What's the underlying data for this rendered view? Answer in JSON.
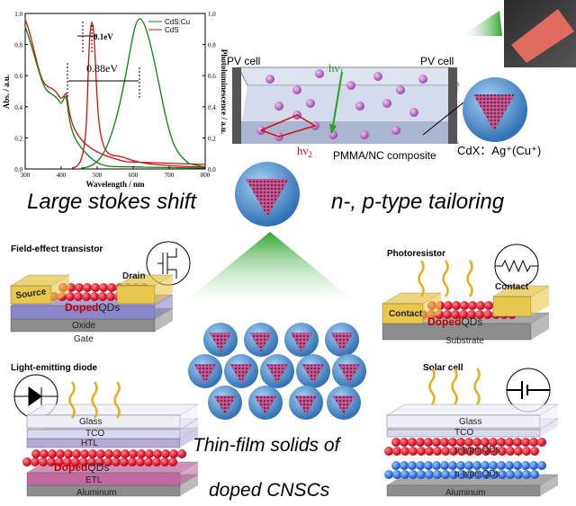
{
  "plot": {
    "y_left_label": "Abs. / a.u.",
    "y_right_label": "Photoluminescence / a.u.",
    "x_label": "Wavelength / nm",
    "y_left_ticks": [
      "0.0",
      "0.2",
      "0.4",
      "0.6",
      "0.8",
      "1.0"
    ],
    "y_right_ticks": [
      "0.0",
      "0.2",
      "0.4",
      "0.6",
      "0.8",
      "1.0"
    ],
    "x_ticks": [
      "300",
      "400",
      "500",
      "600",
      "700",
      "800"
    ],
    "legend": [
      "CdS:Cu",
      "CdS"
    ],
    "annotations": [
      "0.1eV",
      "0.88eV"
    ]
  },
  "concentrator": {
    "pv_left": "PV cell",
    "pv_right": "PV cell",
    "hv1": "hν",
    "hv1_sub": "1",
    "hv2": "hν",
    "hv2_sub": "2",
    "composite": "PMMA/NC composite",
    "dopant": "CdX：Ag⁺(Cu⁺)"
  },
  "headlines": {
    "left": "Large stokes shift",
    "right": "n-, p-type tailoring",
    "bottom_1": "Thin-film solids of",
    "bottom_2": "doped CNSCs"
  },
  "fet": {
    "title": "Field-effect transistor",
    "source": "Source",
    "drain": "Drain",
    "qd_bold": "Doped",
    "qd": "QDs",
    "oxide": "Oxide",
    "gate": "Gate"
  },
  "photoresistor": {
    "title": "Photoresistor",
    "contact_left": "Contact",
    "contact_right": "Contact",
    "qd_bold": "Doped",
    "qd": "QDs",
    "substrate": "Substrate"
  },
  "led": {
    "title": "Light-emitting diode",
    "glass": "Glass",
    "tco": "TCO",
    "htl": "HTL",
    "qd_bold": "Doped",
    "qd": "QDs",
    "etl": "ETL",
    "aluminum": "Aluminum"
  },
  "solar": {
    "title": "Solar cell",
    "glass": "Glass",
    "tco": "TCO",
    "p_qd": "p-type QDs",
    "n_qd": "n-type QDs",
    "aluminum": "Aluminum"
  }
}
